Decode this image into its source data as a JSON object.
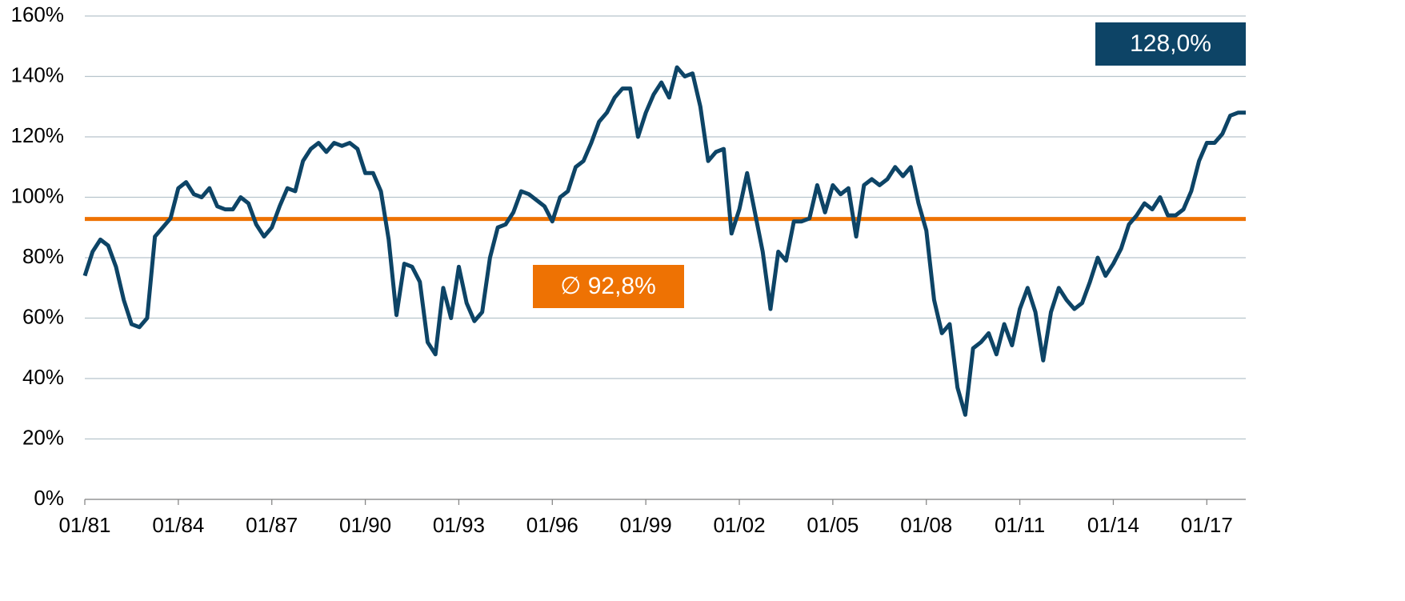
{
  "chart_data": {
    "type": "line",
    "x": [
      "01/81",
      "04/81",
      "07/81",
      "10/81",
      "01/82",
      "04/82",
      "07/82",
      "10/82",
      "01/83",
      "04/83",
      "07/83",
      "10/83",
      "01/84",
      "04/84",
      "07/84",
      "10/84",
      "01/85",
      "04/85",
      "07/85",
      "10/85",
      "01/86",
      "04/86",
      "07/86",
      "10/86",
      "01/87",
      "04/87",
      "07/87",
      "10/87",
      "01/88",
      "04/88",
      "07/88",
      "10/88",
      "01/89",
      "04/89",
      "07/89",
      "10/89",
      "01/90",
      "04/90",
      "07/90",
      "10/90",
      "01/91",
      "04/91",
      "07/91",
      "10/91",
      "01/92",
      "04/92",
      "07/92",
      "10/92",
      "01/93",
      "04/93",
      "07/93",
      "10/93",
      "01/94",
      "04/94",
      "07/94",
      "10/94",
      "01/95",
      "04/95",
      "07/95",
      "10/95",
      "01/96",
      "04/96",
      "07/96",
      "10/96",
      "01/97",
      "04/97",
      "07/97",
      "10/97",
      "01/98",
      "04/98",
      "07/98",
      "10/98",
      "01/99",
      "04/99",
      "07/99",
      "10/99",
      "01/00",
      "04/00",
      "07/00",
      "10/00",
      "01/01",
      "04/01",
      "07/01",
      "10/01",
      "01/02",
      "04/02",
      "07/02",
      "10/02",
      "01/03",
      "04/03",
      "07/03",
      "10/03",
      "01/04",
      "04/04",
      "07/04",
      "10/04",
      "01/05",
      "04/05",
      "07/05",
      "10/05",
      "01/06",
      "04/06",
      "07/06",
      "10/06",
      "01/07",
      "04/07",
      "07/07",
      "10/07",
      "01/08",
      "04/08",
      "07/08",
      "10/08",
      "01/09",
      "04/09",
      "07/09",
      "10/09",
      "01/10",
      "04/10",
      "07/10",
      "10/10",
      "01/11",
      "04/11",
      "07/11",
      "10/11",
      "01/12",
      "04/12",
      "07/12",
      "10/12",
      "01/13",
      "04/13",
      "07/13",
      "10/13",
      "01/14",
      "04/14",
      "07/14",
      "10/14",
      "01/15",
      "04/15",
      "07/15",
      "10/15",
      "01/16",
      "04/16",
      "07/16",
      "10/16",
      "01/17",
      "04/17",
      "07/17",
      "10/17",
      "01/18",
      "04/18"
    ],
    "series": [
      {
        "color": "#0d4466",
        "values": [
          74,
          82,
          86,
          84,
          77,
          66,
          58,
          57,
          60,
          87,
          90,
          93,
          103,
          105,
          101,
          100,
          103,
          97,
          96,
          96,
          100,
          98,
          91,
          87,
          90,
          97,
          103,
          102,
          112,
          116,
          118,
          115,
          118,
          117,
          118,
          116,
          108,
          108,
          102,
          86,
          61,
          78,
          77,
          72,
          52,
          48,
          70,
          60,
          77,
          65,
          59,
          62,
          80,
          90,
          91,
          95,
          102,
          101,
          99,
          97,
          92,
          100,
          102,
          110,
          112,
          118,
          125,
          128,
          133,
          136,
          136,
          120,
          128,
          134,
          138,
          133,
          143,
          140,
          141,
          130,
          112,
          115,
          116,
          88,
          96,
          108,
          95,
          82,
          63,
          82,
          79,
          92,
          92,
          93,
          104,
          95,
          104,
          101,
          103,
          87,
          104,
          106,
          104,
          106,
          110,
          107,
          110,
          98,
          89,
          66,
          55,
          58,
          37,
          28,
          50,
          52,
          55,
          48,
          58,
          51,
          63,
          70,
          62,
          46,
          62,
          70,
          66,
          63,
          65,
          72,
          80,
          74,
          78,
          83,
          91,
          94,
          98,
          96,
          100,
          94,
          94,
          96,
          102,
          112,
          118,
          118,
          121,
          127,
          128,
          128
        ]
      }
    ],
    "xticks": [
      "01/81",
      "01/84",
      "01/87",
      "01/90",
      "01/93",
      "01/96",
      "01/99",
      "01/02",
      "01/05",
      "01/08",
      "01/11",
      "01/14",
      "01/17"
    ],
    "ylim": [
      0,
      160
    ],
    "yticks": [
      {
        "value": 0,
        "label": "0%"
      },
      {
        "value": 20,
        "label": "20%"
      },
      {
        "value": 40,
        "label": "40%"
      },
      {
        "value": 60,
        "label": "60%"
      },
      {
        "value": 80,
        "label": "80%"
      },
      {
        "value": 100,
        "label": "100%"
      },
      {
        "value": 120,
        "label": "120%"
      },
      {
        "value": 140,
        "label": "140%"
      },
      {
        "value": 160,
        "label": "160%"
      }
    ],
    "grid": true,
    "average": {
      "value": 92.8,
      "label": "∅ 92,8%",
      "color": "#ee7203"
    },
    "last_value": {
      "value": 128,
      "label": "128,0%",
      "color": "#0d4466"
    }
  }
}
